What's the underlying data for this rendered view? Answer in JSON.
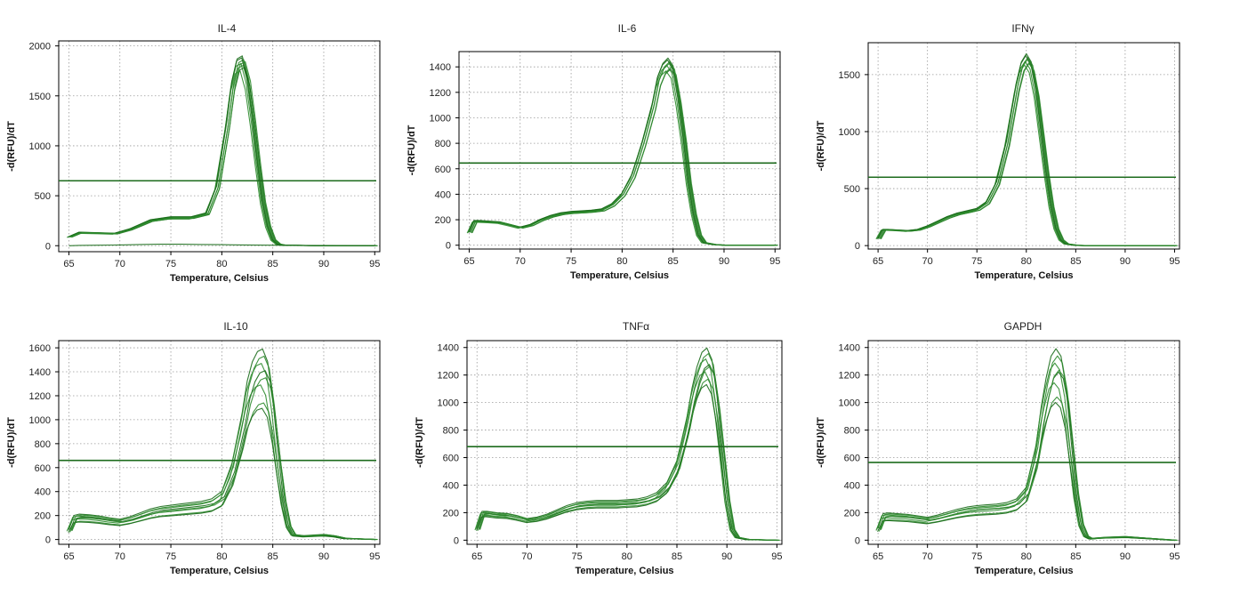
{
  "colors": {
    "curve": "#2e8b2e",
    "curve_dark": "#1a6b1a",
    "threshold": "#1d6b1d",
    "grid": "#9a9a9a",
    "frame": "#000000"
  },
  "chart_data": [
    {
      "type": "line",
      "title": "IL-4",
      "xlabel": "Temperature, Celsius",
      "ylabel": "-d(RFU)/dT",
      "xlim": [
        64,
        95.5
      ],
      "ylim": [
        -60,
        2050
      ],
      "xticks": [
        65,
        70,
        75,
        80,
        85,
        90,
        95
      ],
      "yticks": [
        0,
        500,
        1000,
        1500,
        2000
      ],
      "grid": true,
      "threshold": 650,
      "series": [
        {
          "x": [
            65,
            66,
            68,
            69.5,
            71,
            73,
            75,
            77,
            78.5,
            79.5,
            80.5,
            81,
            81.5,
            82,
            82.5,
            83,
            83.5,
            84,
            84.5,
            85,
            85.5,
            86,
            88,
            90,
            95
          ],
          "values": [
            90,
            135,
            130,
            125,
            170,
            260,
            290,
            290,
            330,
            600,
            1250,
            1650,
            1870,
            1900,
            1700,
            1300,
            850,
            450,
            200,
            60,
            15,
            5,
            2,
            0,
            0
          ]
        },
        {
          "x": [
            65,
            66,
            68,
            70,
            72,
            74,
            76,
            78,
            80,
            82,
            85,
            88,
            92,
            95
          ],
          "values": [
            0,
            3,
            5,
            8,
            12,
            15,
            15,
            12,
            10,
            8,
            5,
            3,
            1,
            0
          ]
        }
      ]
    },
    {
      "type": "line",
      "title": "IL-6",
      "xlabel": "Temperature, Celsius",
      "ylabel": "-d(RFU)/dT",
      "xlim": [
        64,
        95.5
      ],
      "ylim": [
        -30,
        1520
      ],
      "xticks": [
        65,
        70,
        75,
        80,
        85,
        90,
        95
      ],
      "yticks": [
        0,
        200,
        400,
        600,
        800,
        1000,
        1200,
        1400
      ],
      "grid": true,
      "threshold": 645,
      "series": [
        {
          "x": [
            65,
            65.5,
            66,
            67,
            68,
            69,
            70,
            71,
            72,
            73,
            74,
            75,
            76,
            77,
            78,
            79,
            80,
            81,
            82,
            83,
            83.5,
            84,
            84.5,
            85,
            85.5,
            86,
            86.5,
            87,
            87.5,
            88,
            89,
            90,
            95
          ],
          "values": [
            100,
            190,
            190,
            185,
            180,
            160,
            140,
            160,
            200,
            230,
            250,
            260,
            265,
            270,
            280,
            320,
            400,
            550,
            800,
            1100,
            1300,
            1400,
            1440,
            1380,
            1150,
            850,
            500,
            250,
            80,
            20,
            5,
            0,
            0
          ]
        }
      ]
    },
    {
      "type": "line",
      "title": "IFNγ",
      "xlabel": "Temperature, Celsius",
      "ylabel": "-d(RFU)/dT",
      "xlim": [
        64,
        95.5
      ],
      "ylim": [
        -30,
        1780
      ],
      "xticks": [
        65,
        70,
        75,
        80,
        85,
        90,
        95
      ],
      "yticks": [
        0,
        500,
        1000,
        1500
      ],
      "grid": true,
      "threshold": 600,
      "series": [
        {
          "x": [
            65,
            65.5,
            66,
            67,
            68,
            69,
            70,
            71,
            72,
            73,
            74,
            75,
            76,
            77,
            78,
            78.5,
            79,
            79.5,
            80,
            80.5,
            81,
            81.5,
            82,
            82.5,
            83,
            83.5,
            84,
            85,
            86,
            95
          ],
          "values": [
            60,
            140,
            140,
            135,
            130,
            140,
            170,
            210,
            250,
            280,
            300,
            320,
            380,
            550,
            900,
            1150,
            1400,
            1580,
            1650,
            1580,
            1350,
            1000,
            650,
            350,
            150,
            50,
            15,
            3,
            0,
            0
          ]
        }
      ]
    },
    {
      "type": "line",
      "title": "IL-10",
      "xlabel": "Temperature, Celsius",
      "ylabel": "-d(RFU)/dT",
      "xlim": [
        64,
        95.5
      ],
      "ylim": [
        -40,
        1660
      ],
      "xticks": [
        65,
        70,
        75,
        80,
        85,
        90,
        95
      ],
      "yticks": [
        0,
        200,
        400,
        600,
        800,
        1000,
        1200,
        1400,
        1600
      ],
      "grid": true,
      "threshold": 660,
      "series": [
        {
          "x": [
            65,
            65.5,
            66,
            67,
            68,
            69,
            70,
            71,
            72,
            73,
            74,
            75,
            76,
            77,
            78,
            79,
            80,
            81,
            82,
            82.5,
            83,
            83.5,
            84,
            84.5,
            85,
            85.5,
            86,
            86.5,
            87,
            88,
            89,
            90,
            91,
            92,
            95
          ],
          "values": [
            80,
            190,
            200,
            195,
            185,
            170,
            160,
            180,
            210,
            240,
            260,
            270,
            280,
            290,
            300,
            320,
            380,
            600,
            1000,
            1250,
            1400,
            1480,
            1500,
            1400,
            1100,
            700,
            350,
            120,
            40,
            30,
            35,
            40,
            30,
            10,
            0
          ]
        }
      ]
    },
    {
      "type": "line",
      "title": "TNFα",
      "xlabel": "Temperature, Celsius",
      "ylabel": "-d(RFU)/dT",
      "xlim": [
        64,
        95.5
      ],
      "ylim": [
        -30,
        1450
      ],
      "xticks": [
        65,
        70,
        75,
        80,
        85,
        90,
        95
      ],
      "yticks": [
        0,
        200,
        400,
        600,
        800,
        1000,
        1200,
        1400
      ],
      "grid": true,
      "threshold": 680,
      "series": [
        {
          "x": [
            65,
            65.5,
            66,
            67,
            68,
            69,
            70,
            71,
            72,
            73,
            74,
            75,
            76,
            77,
            78,
            79,
            80,
            81,
            82,
            83,
            84,
            85,
            86,
            86.5,
            87,
            87.5,
            88,
            88.5,
            89,
            89.5,
            90,
            90.5,
            91,
            92,
            95
          ],
          "values": [
            80,
            200,
            200,
            190,
            185,
            170,
            150,
            160,
            180,
            210,
            240,
            260,
            270,
            275,
            275,
            275,
            280,
            285,
            300,
            330,
            400,
            550,
            850,
            1050,
            1200,
            1300,
            1330,
            1250,
            1000,
            650,
            300,
            80,
            20,
            5,
            0
          ]
        }
      ]
    },
    {
      "type": "line",
      "title": "GAPDH",
      "xlabel": "Temperature, Celsius",
      "ylabel": "-d(RFU)/dT",
      "xlim": [
        64,
        95.5
      ],
      "ylim": [
        -30,
        1450
      ],
      "xticks": [
        65,
        70,
        75,
        80,
        85,
        90,
        95
      ],
      "yticks": [
        0,
        200,
        400,
        600,
        800,
        1000,
        1200,
        1400
      ],
      "grid": true,
      "threshold": 565,
      "series": [
        {
          "x": [
            65,
            65.5,
            66,
            67,
            68,
            69,
            70,
            71,
            72,
            73,
            74,
            75,
            76,
            77,
            78,
            79,
            80,
            81,
            81.5,
            82,
            82.5,
            83,
            83.5,
            84,
            84.5,
            85,
            85.5,
            86,
            86.5,
            87,
            88,
            90,
            92,
            95
          ],
          "values": [
            80,
            180,
            185,
            180,
            175,
            165,
            155,
            170,
            190,
            210,
            225,
            235,
            240,
            245,
            255,
            280,
            360,
            650,
            900,
            1100,
            1250,
            1300,
            1250,
            1050,
            700,
            350,
            120,
            30,
            10,
            15,
            20,
            25,
            15,
            0
          ]
        }
      ]
    }
  ]
}
